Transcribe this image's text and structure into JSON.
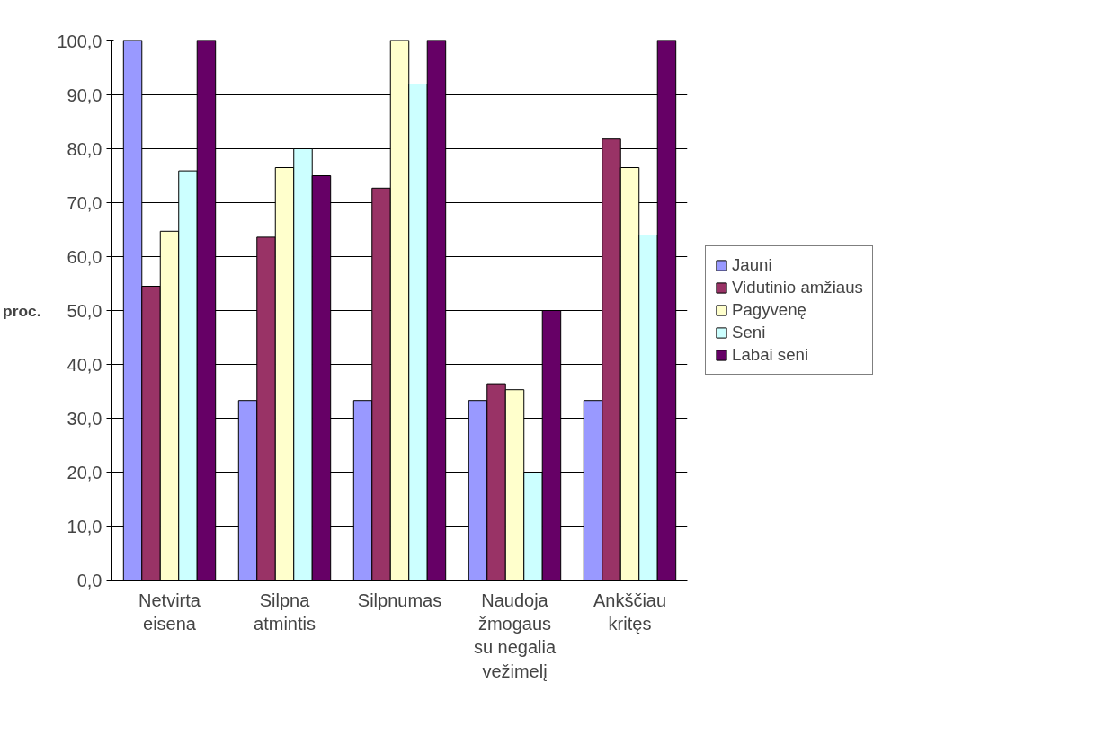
{
  "chart_data": {
    "type": "bar",
    "ylabel": "proc.",
    "categories": [
      "Netvirta\neisena",
      "Silpna\natmintis",
      "Silpnumas",
      "Naudoja\nžmogaus\nsu negalia\nvežimelį",
      "Ankščiau\nkritęs"
    ],
    "series": [
      {
        "name": "Jauni",
        "color": "#9999ff",
        "values": [
          100.0,
          33.3,
          33.3,
          33.3,
          33.3
        ]
      },
      {
        "name": "Vidutinio amžiaus",
        "color": "#993366",
        "values": [
          54.5,
          63.6,
          72.7,
          36.4,
          81.8
        ]
      },
      {
        "name": "Pagyvenę",
        "color": "#ffffcc",
        "values": [
          64.7,
          76.5,
          100.0,
          35.3,
          76.5
        ]
      },
      {
        "name": "Seni",
        "color": "#ccffff",
        "values": [
          75.9,
          80.0,
          92.0,
          20.0,
          64.0
        ]
      },
      {
        "name": "Labai seni",
        "color": "#660066",
        "values": [
          100.0,
          75.0,
          100.0,
          50.0,
          100.0
        ]
      }
    ],
    "ylim": [
      0,
      100
    ],
    "yticks": [
      {
        "value": 0,
        "label": "0,0"
      },
      {
        "value": 10,
        "label": "10,0"
      },
      {
        "value": 20,
        "label": "20,0"
      },
      {
        "value": 30,
        "label": "30,0"
      },
      {
        "value": 40,
        "label": "40,0"
      },
      {
        "value": 50,
        "label": "50,0"
      },
      {
        "value": 60,
        "label": "60,0"
      },
      {
        "value": 70,
        "label": "70,0"
      },
      {
        "value": 80,
        "label": "80,0"
      },
      {
        "value": 90,
        "label": "90,0"
      },
      {
        "value": 100,
        "label": "100,0"
      }
    ],
    "grid": "y",
    "legend": "right"
  }
}
